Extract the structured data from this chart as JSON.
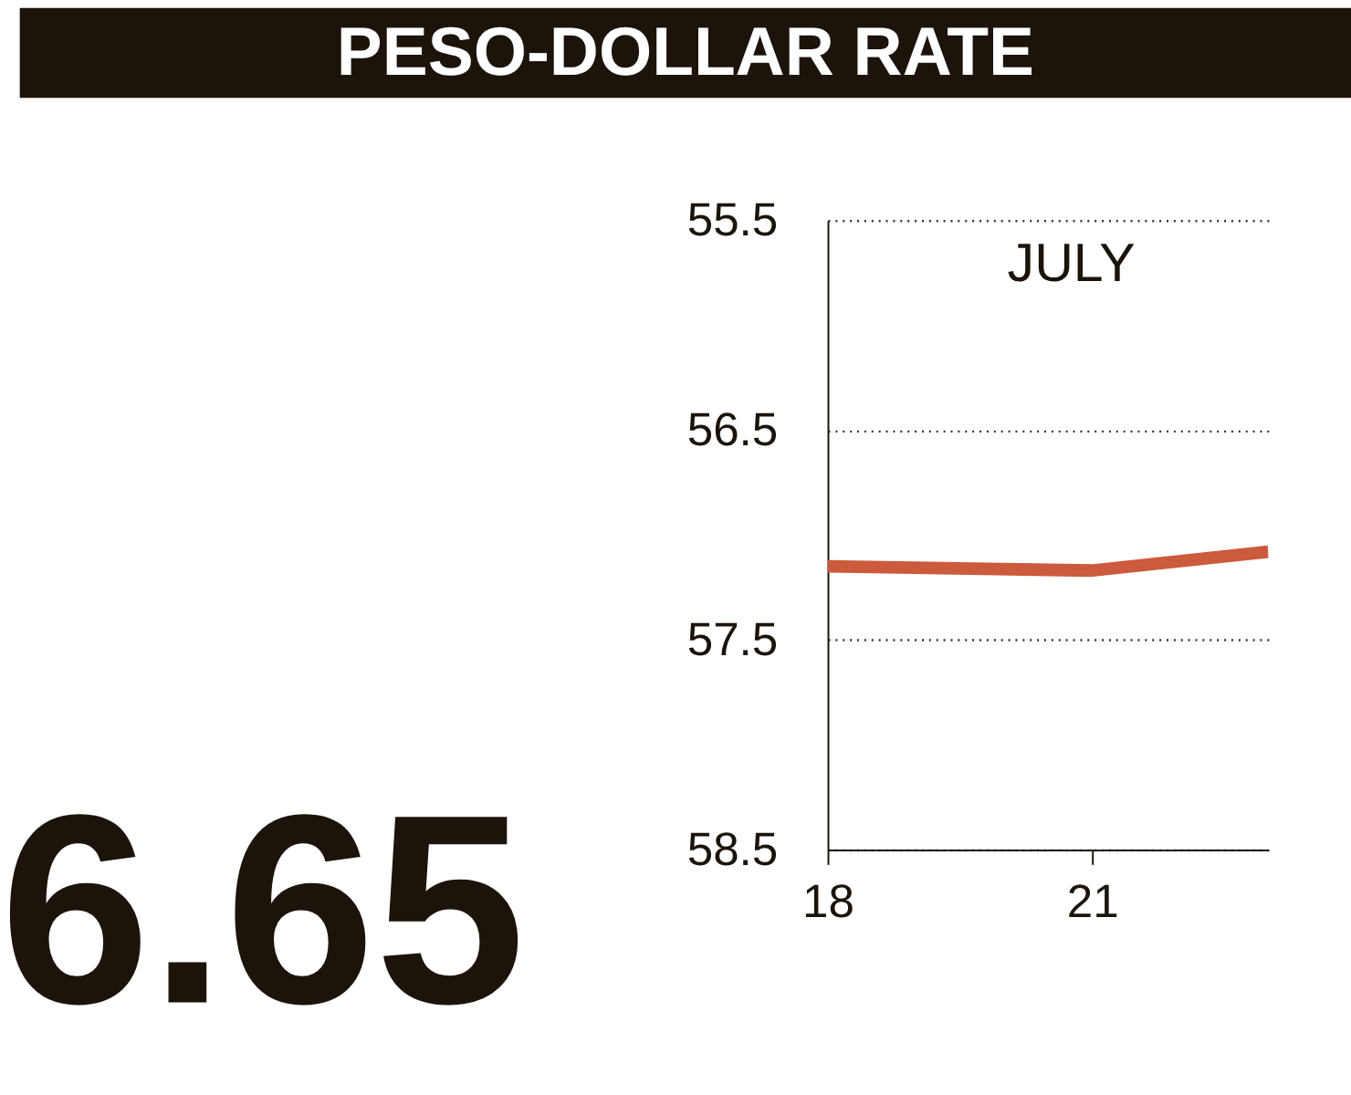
{
  "chart_data": {
    "type": "line",
    "title": "PESO-DOLLAR RATE",
    "x": [
      18,
      21,
      23
    ],
    "series": [
      {
        "color": "#cc5a3c",
        "values": [
          57.15,
          57.17,
          57.08
        ]
      }
    ],
    "xlim": [
      18,
      23
    ],
    "xticks": [
      18,
      21
    ],
    "ylim": [
      58.5,
      55.5
    ],
    "yticks": [
      55.5,
      56.5,
      57.5,
      58.5
    ],
    "grid": "y",
    "line_style": "solid",
    "annotations": [
      "JULY",
      "6.65"
    ]
  }
}
